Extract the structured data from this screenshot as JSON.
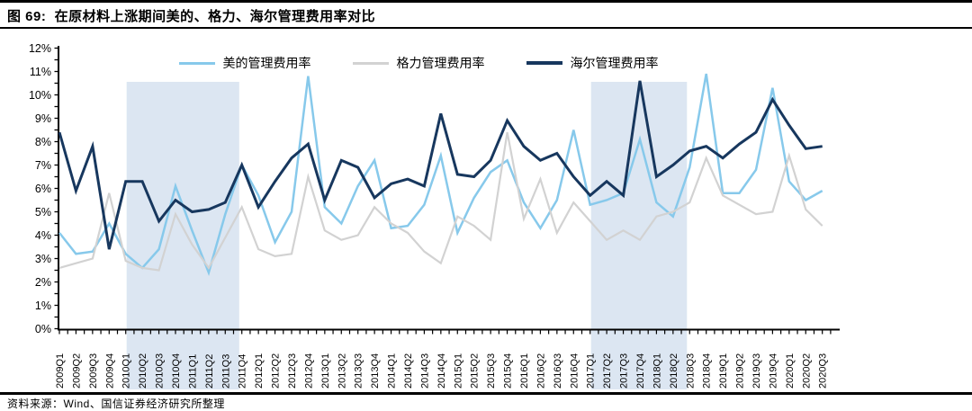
{
  "header": {
    "title": "图 69:  在原材料上涨期间美的、格力、海尔管理费用率对比"
  },
  "footer": {
    "source": "资料来源：Wind、国信证券经济研究所整理"
  },
  "colors": {
    "midea_line": "#87C9EB",
    "gree_line": "#D2D2D2",
    "haier_line": "#17375E",
    "highlight_band": "#DCE6F2",
    "axis": "#000000"
  },
  "chart_data": {
    "type": "line",
    "title": "在原材料上涨期间美的、格力、海尔管理费用率对比",
    "xlabel": "",
    "ylabel": "",
    "ylim": [
      0,
      12
    ],
    "grid": false,
    "legend_position": "top",
    "y_ticks": [
      "0%",
      "1%",
      "2%",
      "3%",
      "4%",
      "5%",
      "6%",
      "7%",
      "8%",
      "9%",
      "10%",
      "11%",
      "12%"
    ],
    "categories": [
      "2009Q1",
      "2009Q2",
      "2009Q3",
      "2009Q4",
      "2010Q1",
      "2010Q2",
      "2010Q3",
      "2010Q4",
      "2011Q1",
      "2011Q2",
      "2011Q3",
      "2011Q4",
      "2012Q1",
      "2012Q2",
      "2012Q3",
      "2012Q4",
      "2013Q1",
      "2013Q2",
      "2013Q3",
      "2013Q4",
      "2014Q1",
      "2014Q2",
      "2014Q3",
      "2014Q4",
      "2015Q1",
      "2015Q2",
      "2015Q3",
      "2015Q4",
      "2016Q1",
      "2016Q2",
      "2016Q3",
      "2016Q4",
      "2017Q1",
      "2017Q2",
      "2017Q3",
      "2017Q4",
      "2018Q1",
      "2018Q2",
      "2018Q3",
      "2018Q4",
      "2019Q1",
      "2019Q2",
      "2019Q3",
      "2019Q4",
      "2020Q1",
      "2020Q2",
      "2020Q3"
    ],
    "series": [
      {
        "name": "美的管理费用率",
        "color": "#87C9EB",
        "values": [
          4.1,
          3.2,
          3.3,
          4.5,
          3.2,
          2.6,
          3.4,
          6.1,
          4.2,
          2.4,
          4.9,
          7.0,
          5.7,
          3.7,
          5.0,
          10.8,
          5.2,
          4.5,
          6.1,
          7.2,
          4.3,
          4.4,
          5.3,
          7.4,
          4.1,
          5.6,
          6.7,
          7.2,
          5.4,
          4.3,
          5.5,
          8.5,
          5.3,
          5.5,
          5.8,
          8.1,
          5.4,
          4.8,
          6.9,
          10.9,
          5.8,
          5.8,
          6.8,
          10.3,
          6.3,
          5.5,
          5.9
        ]
      },
      {
        "name": "格力管理费用率",
        "color": "#D2D2D2",
        "values": [
          2.6,
          2.8,
          3.0,
          5.8,
          2.9,
          2.6,
          2.5,
          4.9,
          3.6,
          2.6,
          3.9,
          5.2,
          3.4,
          3.1,
          3.2,
          6.5,
          4.2,
          3.8,
          4.0,
          5.2,
          4.5,
          4.1,
          3.3,
          2.8,
          4.8,
          4.4,
          3.8,
          8.4,
          4.7,
          6.4,
          4.1,
          5.4,
          4.6,
          3.8,
          4.2,
          3.8,
          4.8,
          5.0,
          5.4,
          7.3,
          5.7,
          5.3,
          4.9,
          5.0,
          7.4,
          5.1,
          4.4
        ]
      },
      {
        "name": "海尔管理费用率",
        "color": "#17375E",
        "values": [
          8.4,
          5.9,
          7.8,
          3.4,
          6.3,
          6.3,
          4.6,
          5.5,
          5.0,
          5.1,
          5.4,
          7.0,
          5.2,
          6.3,
          7.3,
          7.9,
          5.5,
          7.2,
          6.9,
          5.6,
          6.2,
          6.4,
          6.1,
          9.2,
          6.6,
          6.5,
          7.2,
          8.9,
          7.8,
          7.2,
          7.5,
          6.5,
          5.7,
          6.3,
          5.7,
          10.6,
          6.5,
          7.0,
          7.6,
          7.8,
          7.3,
          7.9,
          8.4,
          9.8,
          8.7,
          7.7,
          7.8
        ]
      }
    ],
    "highlight_bands": [
      {
        "from": "2010Q1",
        "to": "2011Q3"
      },
      {
        "from": "2017Q1",
        "to": "2018Q2"
      }
    ],
    "band_color": "#DCE6F2"
  }
}
